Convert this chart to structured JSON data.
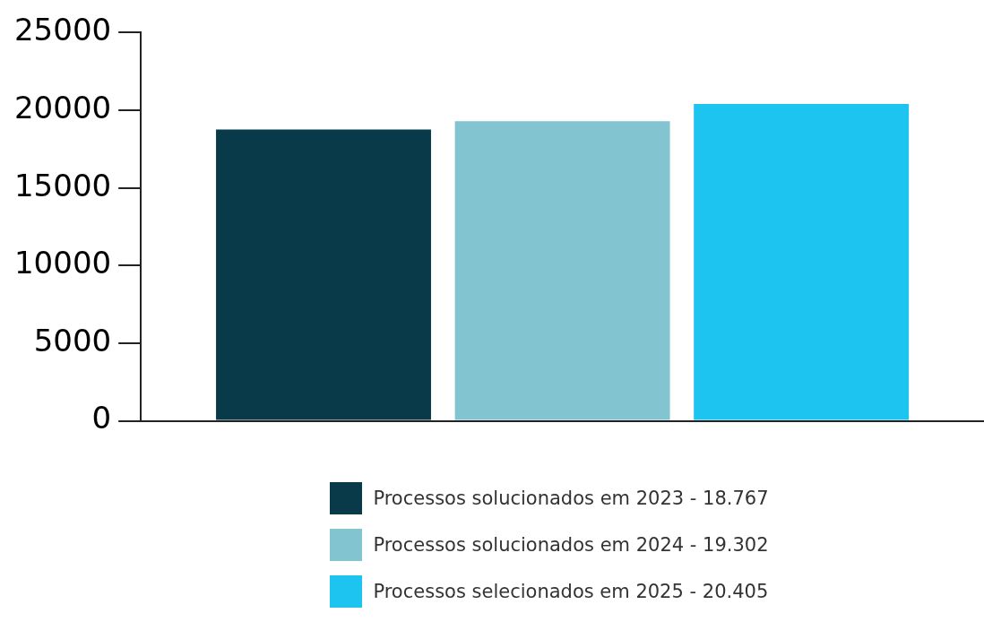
{
  "chart_data": {
    "type": "bar",
    "categories": [
      null
    ],
    "series": [
      {
        "name": "Processos solucionados em 2023 - 18.767",
        "color": "#083a4a",
        "values": [
          18767
        ]
      },
      {
        "name": "Processos solucionados em 2024 - 19.302",
        "color": "#82c4cf",
        "values": [
          19302
        ]
      },
      {
        "name": "Processos selecionados em 2025 - 20.405",
        "color": "#1ec4f0",
        "values": [
          20405
        ]
      }
    ],
    "ylim": [
      0,
      25000
    ],
    "yticks": [
      0,
      5000,
      10000,
      15000,
      20000,
      25000
    ],
    "grid": false,
    "legend": "bottom"
  }
}
